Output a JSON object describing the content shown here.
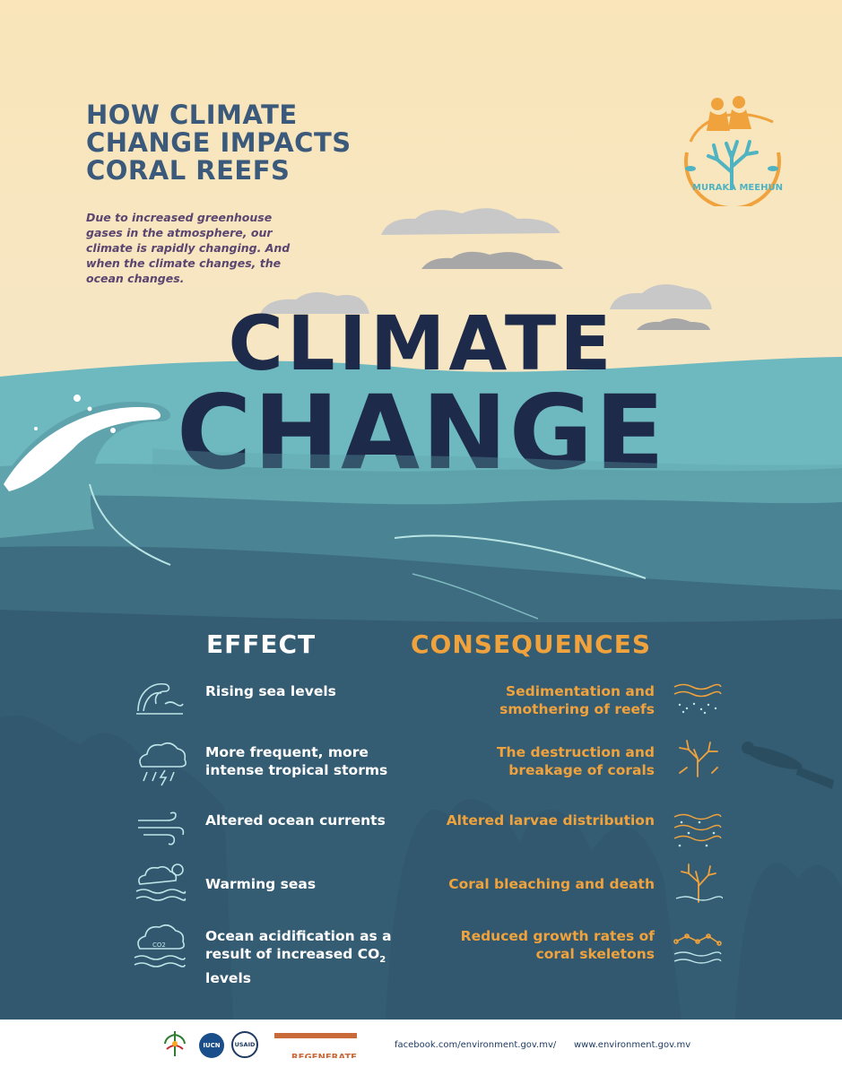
{
  "title": "HOW CLIMATE CHANGE IMPACTS CORAL REEFS",
  "intro": "Due to increased greenhouse gases in the atmosphere, our climate is rapidly changing. And when the climate changes, the ocean changes.",
  "hero_line1": "CLIMATE",
  "hero_line2": "CHANGE",
  "logo_text": "MURAKA MEEHUN",
  "headings": {
    "effect": "EFFECT",
    "consequences": "CONSEQUENCES"
  },
  "rows": [
    {
      "effect": "Rising sea levels",
      "effect_icon": "wave-icon",
      "consequence": "Sedimentation and smothering of reefs",
      "consequence_icon": "sediment-icon"
    },
    {
      "effect": "More frequent, more intense tropical storms",
      "effect_icon": "storm-cloud-icon",
      "consequence": "The destruction and breakage of corals",
      "consequence_icon": "broken-coral-icon"
    },
    {
      "effect": "Altered ocean currents",
      "effect_icon": "current-icon",
      "consequence": "Altered larvae distribution",
      "consequence_icon": "larvae-icon"
    },
    {
      "effect": "Warming seas",
      "effect_icon": "sun-cloud-icon",
      "consequence": "Coral bleaching and death",
      "consequence_icon": "bleached-coral-icon"
    },
    {
      "effect": "Ocean acidification as a result of increased CO",
      "effect_sub": "2",
      "effect_tail": " levels",
      "effect_icon": "co2-cloud-icon",
      "consequence": "Reduced growth rates of coral skeletons",
      "consequence_icon": "growth-icon"
    }
  ],
  "footer": {
    "facebook": "facebook.com/environment.gov.mv/",
    "website": "www.environment.gov.mv",
    "partners": [
      "IUCN",
      "USAID",
      "REGENERATE"
    ]
  },
  "colors": {
    "navy": "#1e2a4a",
    "orange": "#f0a23c",
    "title_blue": "#3b5a7b",
    "deep_water": "#345c73",
    "light_water": "#6db9bf"
  }
}
